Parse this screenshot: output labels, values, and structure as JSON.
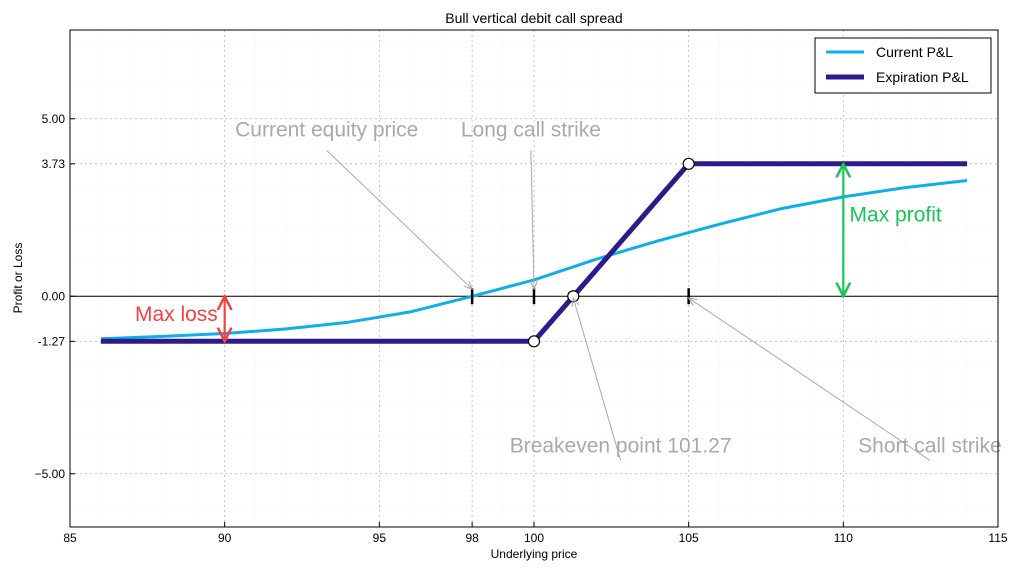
{
  "chart_data": {
    "type": "line",
    "title": "Bull vertical debit call spread",
    "xlabel": "Underlying price",
    "ylabel": "Profit or Loss",
    "xlim": [
      85,
      115
    ],
    "ylim": [
      -6.5,
      7.5
    ],
    "x_ticks": [
      85,
      90,
      95,
      98,
      100,
      105,
      110,
      115
    ],
    "x_tick_labels": [
      "85",
      "90",
      "95",
      "98",
      "100",
      "105",
      "110",
      "115"
    ],
    "y_ticks": [
      -5.0,
      -1.27,
      0.0,
      3.73,
      5.0
    ],
    "y_tick_labels": [
      "−5.00",
      "-1.27",
      "0.00",
      "3.73",
      "5.00"
    ],
    "grid": true,
    "legend_position": "top-right",
    "colors": {
      "current": "#10aee9",
      "expiration": "#2e1a8c",
      "loss": "#f24141",
      "profit": "#19c653",
      "annotation": "#a9a9a9"
    },
    "series": [
      {
        "name": "Current P&L",
        "key": "current",
        "x": [
          86,
          88,
          90,
          92,
          94,
          96,
          98,
          100,
          102,
          104,
          106,
          108,
          110,
          112,
          114
        ],
        "y": [
          -1.2,
          -1.13,
          -1.05,
          -0.92,
          -0.73,
          -0.44,
          0.0,
          0.46,
          1.04,
          1.56,
          2.03,
          2.47,
          2.8,
          3.06,
          3.26
        ]
      },
      {
        "name": "Expiration P&L",
        "key": "expiration",
        "x": [
          86,
          100,
          101.27,
          105,
          114
        ],
        "y": [
          -1.27,
          -1.27,
          0.0,
          3.73,
          3.73
        ]
      }
    ],
    "markers": [
      {
        "x": 100,
        "y": -1.27
      },
      {
        "x": 101.27,
        "y": 0.0
      },
      {
        "x": 105,
        "y": 3.73
      }
    ],
    "strike_ticks": [
      98,
      100,
      105
    ],
    "annotations": [
      {
        "text": "Current equity price",
        "color_key": "annotation",
        "text_x": 93.3,
        "text_y": 4.5,
        "target_x": 98,
        "target_y": 0.2
      },
      {
        "text": "Long call strike",
        "color_key": "annotation",
        "text_x": 99.9,
        "text_y": 4.5,
        "target_x": 100,
        "target_y": 0.2
      },
      {
        "text": "Breakeven point 101.27",
        "color_key": "annotation",
        "text_x": 102.8,
        "text_y": -4.4,
        "target_x": 101.27,
        "target_y": -0.05
      },
      {
        "text": "Short call strike",
        "color_key": "annotation",
        "text_x": 112.8,
        "text_y": -4.4,
        "target_x": 105,
        "target_y": -0.05
      }
    ],
    "range_labels": [
      {
        "text": "Max loss",
        "color_key": "loss",
        "x": 90,
        "y_low": -1.27,
        "y_high": 0.0,
        "text_x": 87.1,
        "text_y": -0.7
      },
      {
        "text": "Max profit",
        "color_key": "profit",
        "x": 110,
        "y_low": 0.0,
        "y_high": 3.73,
        "text_x": 110.2,
        "text_y": 2.1
      }
    ]
  }
}
